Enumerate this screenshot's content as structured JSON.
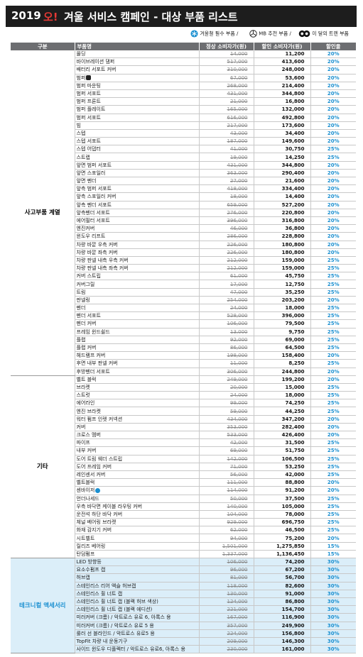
{
  "title": {
    "year": "2019",
    "o": "오!",
    "rest": "겨울 서비스 캠페인 - 대상 부품 리스트"
  },
  "legend": {
    "item1": "겨울철 필수 부품",
    "item2": "MB 추천 부품",
    "item3": "이 달의 트렌 부품"
  },
  "table": {
    "headers": [
      "구분",
      "부품명",
      "정상 소비자가(원)",
      "할인 소비자가(원)",
      "할인율"
    ],
    "sections": [
      {
        "name": "사고부품 계열",
        "tint": false,
        "rows": [
          [
            "몰딩",
            "14,000",
            "11,200",
            "20%"
          ],
          [
            "바이브레이션 댐퍼",
            "517,000",
            "413,600",
            "20%"
          ],
          [
            "배터리 서포트 커버",
            "310,000",
            "248,000",
            "20%"
          ],
          [
            "범퍼",
            "67,000",
            "53,600",
            "20%"
          ],
          [
            "범퍼 마운팅",
            "268,000",
            "214,400",
            "20%"
          ],
          [
            "범퍼 서포트",
            "431,000",
            "344,800",
            "20%"
          ],
          [
            "범퍼 프론트",
            "21,000",
            "16,800",
            "20%"
          ],
          [
            "범퍼 플레이트",
            "165,000",
            "132,000",
            "20%"
          ],
          [
            "범퍼 서포트",
            "616,000",
            "492,800",
            "20%"
          ],
          [
            "빔",
            "217,000",
            "173,600",
            "20%"
          ],
          [
            "스텝",
            "43,000",
            "34,400",
            "20%"
          ],
          [
            "스텝 서포트",
            "187,000",
            "149,600",
            "20%"
          ],
          [
            "스텝 어댑터",
            "41,000",
            "30,750",
            "25%"
          ],
          [
            "스트랩",
            "19,000",
            "14,250",
            "25%"
          ],
          [
            "앞면 범퍼 서포트",
            "431,000",
            "344,800",
            "20%"
          ],
          [
            "앞면 스포일러",
            "363,000",
            "290,400",
            "20%"
          ],
          [
            "앞면 펜더",
            "27,000",
            "21,600",
            "20%"
          ],
          [
            "앞측 범퍼 서포트",
            "418,000",
            "334,400",
            "20%"
          ],
          [
            "앞측 스포일러 커버",
            "18,000",
            "14,400",
            "20%"
          ],
          [
            "앞측 펜더 서포트",
            "659,000",
            "527,200",
            "20%"
          ],
          [
            "앞측펜더 서포트",
            "276,000",
            "220,800",
            "20%"
          ],
          [
            "에어필터 서포트",
            "396,000",
            "316,800",
            "20%"
          ],
          [
            "엔진커버",
            "46,000",
            "36,800",
            "20%"
          ],
          [
            "윈도우 리프트",
            "286,000",
            "228,800",
            "20%"
          ],
          [
            "차량 바깥 우측 커버",
            "226,000",
            "180,800",
            "20%"
          ],
          [
            "차량 바깥 좌측 커버",
            "226,000",
            "180,800",
            "20%"
          ],
          [
            "차량 판넬 내측 우측 커버",
            "212,000",
            "159,000",
            "25%"
          ],
          [
            "차량 판넬 내측 좌측 커버",
            "212,000",
            "159,000",
            "25%"
          ],
          [
            "커버 스트립",
            "61,000",
            "45,750",
            "25%"
          ],
          [
            "커버그릴",
            "17,000",
            "12,750",
            "25%"
          ],
          [
            "트림",
            "47,000",
            "35,250",
            "25%"
          ],
          [
            "판넬링",
            "254,000",
            "203,200",
            "20%"
          ],
          [
            "펜더",
            "24,000",
            "18,000",
            "25%"
          ],
          [
            "펜더 서포트",
            "528,000",
            "396,000",
            "25%"
          ],
          [
            "펜더 커버",
            "106,000",
            "79,500",
            "25%"
          ],
          [
            "프레임 윈드쉴드",
            "13,000",
            "9,750",
            "25%"
          ],
          [
            "플랩",
            "92,000",
            "69,000",
            "25%"
          ],
          [
            "플랩 커버",
            "86,000",
            "64,500",
            "25%"
          ],
          [
            "헤드램프 커버",
            "198,000",
            "158,400",
            "20%"
          ],
          [
            "후면 내부 판넬 커버",
            "11,000",
            "8,250",
            "25%"
          ],
          [
            "후방펜더 서포트",
            "306,000",
            "244,800",
            "20%"
          ]
        ]
      },
      {
        "name": "기타",
        "tint": false,
        "rows": [
          [
            "벨트 블럭",
            "249,000",
            "199,200",
            "20%"
          ],
          [
            "브라켓",
            "20,000",
            "15,000",
            "25%"
          ],
          [
            "스트럿",
            "24,000",
            "18,000",
            "25%"
          ],
          [
            "에어라인",
            "99,000",
            "74,250",
            "25%"
          ],
          [
            "엔진 브라켓",
            "59,000",
            "44,250",
            "25%"
          ],
          [
            "워터 펌프 인렛 커넥션",
            "434,000",
            "347,200",
            "20%"
          ],
          [
            "커버",
            "353,000",
            "282,400",
            "20%"
          ],
          [
            "크로스 멤버",
            "533,000",
            "426,400",
            "20%"
          ],
          [
            "파이프",
            "42,000",
            "31,500",
            "25%"
          ],
          [
            "내부 커버",
            "69,000",
            "51,750",
            "25%"
          ],
          [
            "도어 트림 웨더 스트립",
            "142,000",
            "106,500",
            "25%"
          ],
          [
            "도어 프레임 커버",
            "71,000",
            "53,250",
            "25%"
          ],
          [
            "레인센서 커버",
            "56,000",
            "42,000",
            "25%"
          ],
          [
            "벨트블럭",
            "111,000",
            "88,800",
            "20%"
          ],
          [
            "센바이저",
            "114,000",
            "91,200",
            "20%"
          ],
          [
            "언더나세드",
            "50,000",
            "37,500",
            "25%"
          ],
          [
            "우측 바닥면 케이블 라우팅 커버",
            "140,000",
            "105,000",
            "25%"
          ],
          [
            "운전석 하단 바닥 커버",
            "104,000",
            "78,000",
            "25%"
          ],
          [
            "체널 베어링 브라켓",
            "929,000",
            "696,750",
            "25%"
          ],
          [
            "화재 감지기 커버",
            "62,000",
            "46,500",
            "25%"
          ],
          [
            "시트벨트",
            "94,000",
            "75,200",
            "20%"
          ],
          [
            "릴리즈 베어링",
            "1,501,000",
            "1,275,850",
            "15%"
          ],
          [
            "탄덤펌프",
            "1,337,000",
            "1,136,450",
            "15%"
          ]
        ]
      },
      {
        "name": "테크니컬 액세서리",
        "tint": true,
        "rows": [
          [
            "LED 방향등",
            "106,000",
            "74,200",
            "30%"
          ],
          [
            "요소수펌프 캡",
            "96,000",
            "67,200",
            "30%"
          ],
          [
            "허브캡",
            "81,000",
            "56,700",
            "30%"
          ],
          [
            "스테인리스 리어 액슬 허브캡",
            "118,000",
            "82,600",
            "30%"
          ],
          [
            "스테인리스 휠 너트 캡",
            "130,000",
            "91,000",
            "30%"
          ],
          [
            "스테인리스 휠 너트 캡 (블랙 허브 색상)",
            "124,000",
            "86,800",
            "30%"
          ],
          [
            "스테인리스 휠 너트 캡 (블랙 에디션)",
            "221,000",
            "154,700",
            "30%"
          ],
          [
            "미러커버 (크롬) / 악트로스 유로 6, 아록스 용",
            "167,000",
            "116,900",
            "30%"
          ],
          [
            "미러커버 (크롬) / 악트로스 유로 5 용",
            "357,000",
            "249,900",
            "30%"
          ],
          [
            "룰러 선 블라인드 / 악트로스 유로5 용",
            "224,000",
            "156,800",
            "30%"
          ],
          [
            "TopFit 차량 내 운동기구",
            "209,000",
            "146,300",
            "30%"
          ],
          [
            "사이드 윈도우 디플렉터 / 악트로스 유로6, 아록스 용",
            "230,000",
            "161,000",
            "30%"
          ]
        ]
      }
    ]
  }
}
